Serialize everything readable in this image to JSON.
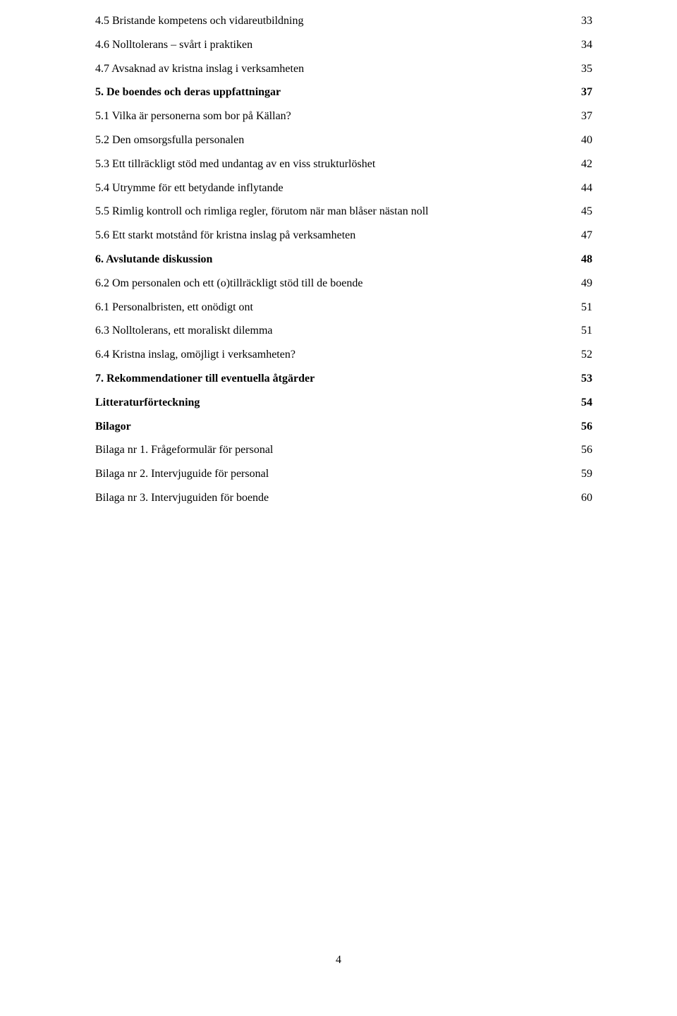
{
  "toc": [
    {
      "text": "4.5 Bristande kompetens och vidareutbildning",
      "page": "33",
      "bold": false
    },
    {
      "text": "4.6 Nolltolerans – svårt i praktiken",
      "page": "34",
      "bold": false
    },
    {
      "text": "4.7 Avsaknad av kristna inslag i verksamheten",
      "page": "35",
      "bold": false
    },
    {
      "text": "5. De boendes och deras uppfattningar",
      "page": "37",
      "bold": true
    },
    {
      "text": "5.1 Vilka är personerna som bor på Källan?",
      "page": "37",
      "bold": false
    },
    {
      "text": "5.2 Den omsorgsfulla personalen",
      "page": "40",
      "bold": false
    },
    {
      "text": "5.3 Ett tillräckligt stöd med undantag av en viss strukturlöshet",
      "page": "42",
      "bold": false
    },
    {
      "text": "5.4 Utrymme för ett betydande inflytande",
      "page": "44",
      "bold": false
    },
    {
      "text": "5.5 Rimlig kontroll och rimliga regler, förutom när man blåser nästan noll",
      "page": "45",
      "bold": false
    },
    {
      "text": "5.6 Ett starkt motstånd för kristna inslag på verksamheten",
      "page": "47",
      "bold": false
    },
    {
      "text": "6. Avslutande diskussion",
      "page": "48",
      "bold": true
    },
    {
      "text": "6.2 Om personalen och ett (o)tillräckligt stöd till de boende",
      "page": "49",
      "bold": false
    },
    {
      "text": "6.1 Personalbristen, ett onödigt ont",
      "page": "51",
      "bold": false
    },
    {
      "text": "6.3 Nolltolerans, ett moraliskt dilemma",
      "page": "51",
      "bold": false
    },
    {
      "text": "6.4 Kristna inslag, omöjligt i verksamheten?",
      "page": "52",
      "bold": false
    },
    {
      "text": "7. Rekommendationer till eventuella åtgärder",
      "page": "53",
      "bold": true
    },
    {
      "text": "Litteraturförteckning",
      "page": "54",
      "bold": true
    },
    {
      "text": "Bilagor",
      "page": "56",
      "bold": true
    },
    {
      "text": "Bilaga nr 1. Frågeformulär för personal",
      "page": "56",
      "bold": false
    },
    {
      "text": "Bilaga nr 2. Intervjuguide för personal",
      "page": "59",
      "bold": false
    },
    {
      "text": "Bilaga nr 3. Intervjuguiden för boende",
      "page": "60",
      "bold": false
    }
  ],
  "pageNumber": "4"
}
